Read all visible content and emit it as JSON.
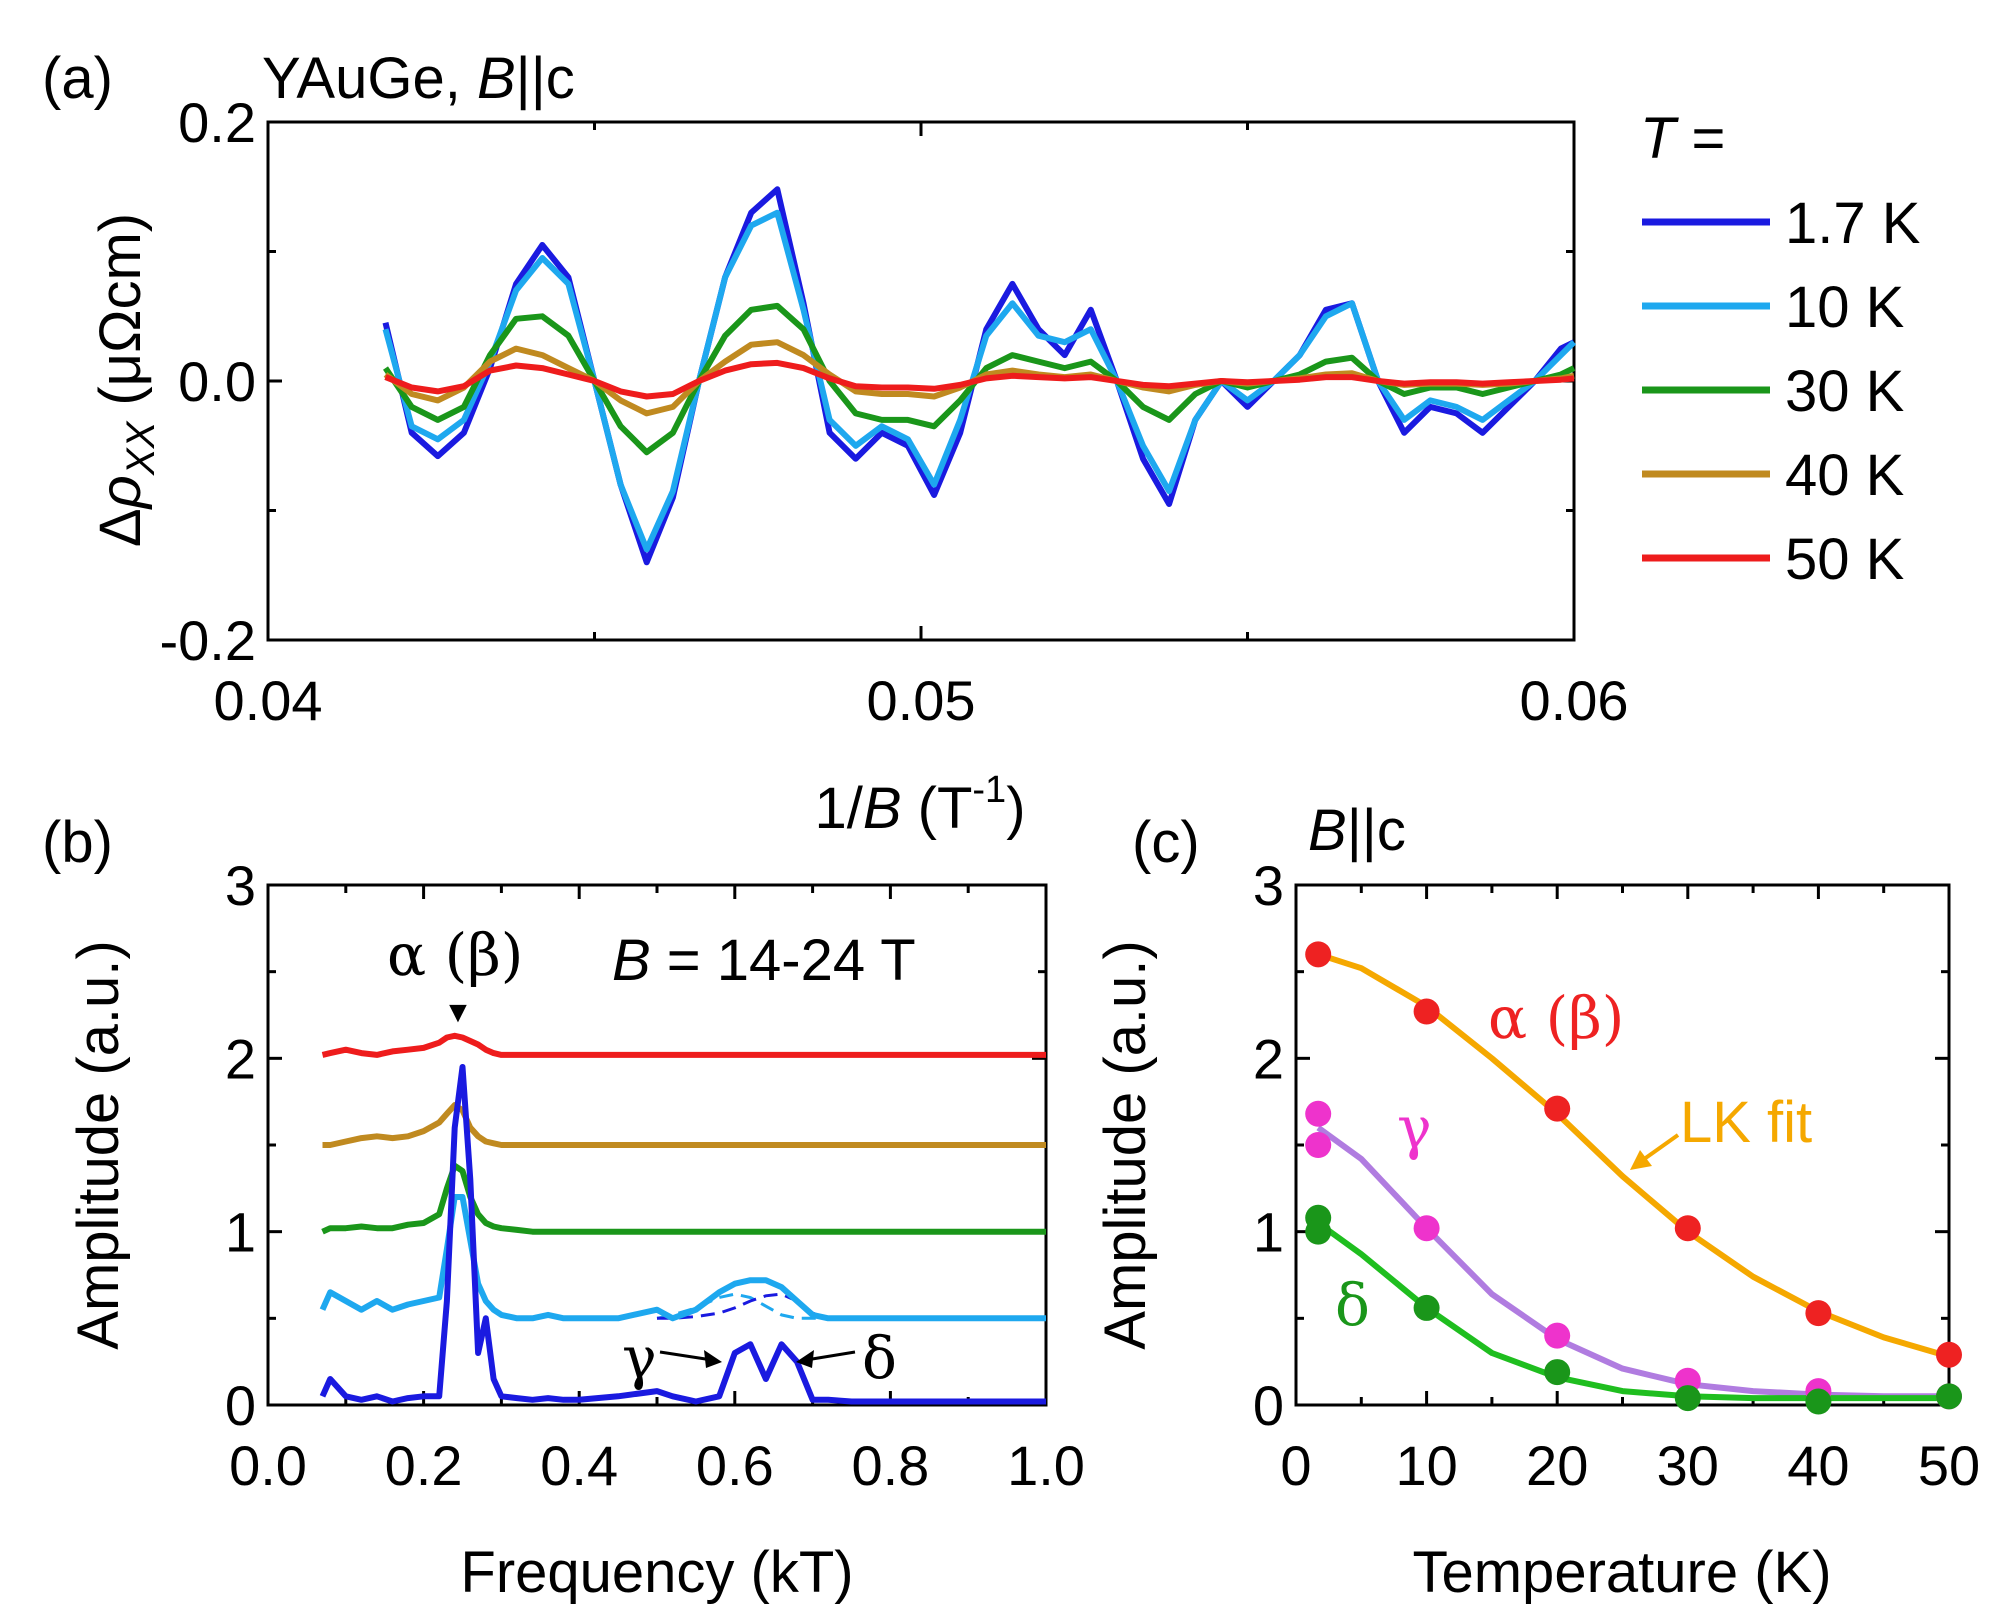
{
  "colors": {
    "1.7K": "#1a1ae0",
    "10K": "#1ea8ef",
    "30K": "#1a961a",
    "40K": "#c08a20",
    "50K": "#ee1c1c",
    "fit_ab": "#f5a800",
    "fit_g": "#b07ce0",
    "fit_d": "#1fbe1f",
    "pt_ab": "#ee2222",
    "pt_g": "#ee33cc",
    "pt_d": "#1a961a"
  },
  "chart_data": [
    {
      "id": "a",
      "type": "line",
      "panel_label": "(a)",
      "title": "YAuGe, B||c",
      "xlabel": "1/B (T-1)",
      "ylabel": "Δρxx (μΩcm)",
      "xlim": [
        0.04,
        0.06
      ],
      "ylim": [
        -0.2,
        0.2
      ],
      "xticks": [
        "0.04",
        "0.05",
        "0.06"
      ],
      "yticks": [
        "-0.2",
        "0.0",
        "0.2"
      ],
      "legend_title": "T =",
      "legend_position": "right",
      "legend": [
        "1.7 K",
        "10 K",
        "30 K",
        "40 K",
        "50 K"
      ],
      "x": [
        0.0418,
        0.0422,
        0.0426,
        0.043,
        0.0434,
        0.0438,
        0.0442,
        0.0446,
        0.045,
        0.0454,
        0.0458,
        0.0462,
        0.0466,
        0.047,
        0.0474,
        0.0478,
        0.0482,
        0.0486,
        0.049,
        0.0494,
        0.0498,
        0.0502,
        0.0506,
        0.051,
        0.0514,
        0.0518,
        0.0522,
        0.0526,
        0.053,
        0.0534,
        0.0538,
        0.0542,
        0.0546,
        0.055,
        0.0554,
        0.0558,
        0.0562,
        0.0566,
        0.057,
        0.0574,
        0.0578,
        0.0582,
        0.0586,
        0.059,
        0.0594,
        0.0598,
        0.06
      ],
      "series": [
        {
          "name": "1.7 K",
          "values": [
            0.045,
            -0.04,
            -0.058,
            -0.04,
            0.01,
            0.075,
            0.105,
            0.08,
            0.0,
            -0.08,
            -0.14,
            -0.09,
            0.0,
            0.08,
            0.13,
            0.148,
            0.06,
            -0.04,
            -0.06,
            -0.04,
            -0.05,
            -0.088,
            -0.04,
            0.04,
            0.075,
            0.04,
            0.02,
            0.055,
            0.0,
            -0.06,
            -0.095,
            -0.03,
            0.0,
            -0.02,
            0.0,
            0.02,
            0.055,
            0.06,
            0.0,
            -0.04,
            -0.02,
            -0.025,
            -0.04,
            -0.02,
            0.0,
            0.025,
            0.03
          ]
        },
        {
          "name": "10 K",
          "values": [
            0.04,
            -0.035,
            -0.045,
            -0.03,
            0.015,
            0.07,
            0.095,
            0.075,
            0.0,
            -0.08,
            -0.13,
            -0.085,
            0.0,
            0.08,
            0.12,
            0.13,
            0.055,
            -0.03,
            -0.05,
            -0.035,
            -0.045,
            -0.08,
            -0.03,
            0.035,
            0.06,
            0.035,
            0.03,
            0.04,
            0.0,
            -0.05,
            -0.085,
            -0.03,
            0.0,
            -0.015,
            0.0,
            0.02,
            0.05,
            0.06,
            0.0,
            -0.03,
            -0.015,
            -0.02,
            -0.03,
            -0.015,
            0.0,
            0.02,
            0.03
          ]
        },
        {
          "name": "30 K",
          "values": [
            0.01,
            -0.02,
            -0.03,
            -0.02,
            0.02,
            0.048,
            0.05,
            0.035,
            0.0,
            -0.035,
            -0.055,
            -0.04,
            0.0,
            0.035,
            0.055,
            0.058,
            0.04,
            0.0,
            -0.025,
            -0.03,
            -0.03,
            -0.035,
            -0.015,
            0.01,
            0.02,
            0.015,
            0.01,
            0.015,
            0.0,
            -0.02,
            -0.03,
            -0.01,
            0.0,
            -0.005,
            0.0,
            0.005,
            0.015,
            0.018,
            0.0,
            -0.01,
            -0.005,
            -0.005,
            -0.01,
            -0.005,
            0.0,
            0.005,
            0.01
          ]
        },
        {
          "name": "40 K",
          "values": [
            0.005,
            -0.01,
            -0.015,
            -0.005,
            0.015,
            0.025,
            0.02,
            0.01,
            0.0,
            -0.015,
            -0.025,
            -0.02,
            0.0,
            0.015,
            0.028,
            0.03,
            0.02,
            0.005,
            -0.008,
            -0.01,
            -0.01,
            -0.012,
            -0.005,
            0.005,
            0.008,
            0.005,
            0.003,
            0.005,
            0.0,
            -0.005,
            -0.008,
            -0.003,
            0.0,
            -0.002,
            0.0,
            0.002,
            0.005,
            0.006,
            0.0,
            -0.003,
            -0.002,
            -0.002,
            -0.003,
            -0.002,
            0.0,
            0.002,
            0.004
          ]
        },
        {
          "name": "50 K",
          "values": [
            0.003,
            -0.005,
            -0.008,
            -0.004,
            0.008,
            0.012,
            0.01,
            0.005,
            0.0,
            -0.008,
            -0.012,
            -0.01,
            0.0,
            0.008,
            0.013,
            0.014,
            0.01,
            0.002,
            -0.004,
            -0.005,
            -0.005,
            -0.006,
            -0.003,
            0.002,
            0.004,
            0.003,
            0.002,
            0.003,
            0.0,
            -0.003,
            -0.004,
            -0.002,
            0.0,
            -0.001,
            0.0,
            0.001,
            0.003,
            0.003,
            0.0,
            -0.002,
            -0.001,
            -0.001,
            -0.002,
            -0.001,
            0.0,
            0.001,
            0.002
          ]
        }
      ]
    },
    {
      "id": "b",
      "type": "line",
      "panel_label": "(b)",
      "xlabel": "Frequency (kT)",
      "ylabel": "Amplitude (a.u.)",
      "xlim": [
        0.0,
        1.0
      ],
      "ylim": [
        0,
        3
      ],
      "xticks": [
        "0.0",
        "0.2",
        "0.4",
        "0.6",
        "0.8",
        "1.0"
      ],
      "yticks": [
        "0",
        "1",
        "2",
        "3"
      ],
      "annotation_field": "B = 14-24 T",
      "annotations": [
        "α (β)",
        "γ",
        "δ"
      ],
      "note": "spectra offset vertically by 0, 0.5, 1, 1.5, 2 for 1.7, 10, 30, 40, 50 K",
      "x": [
        0.07,
        0.08,
        0.1,
        0.12,
        0.14,
        0.16,
        0.18,
        0.2,
        0.22,
        0.23,
        0.24,
        0.25,
        0.26,
        0.27,
        0.28,
        0.29,
        0.3,
        0.32,
        0.34,
        0.36,
        0.38,
        0.4,
        0.45,
        0.5,
        0.52,
        0.55,
        0.58,
        0.6,
        0.62,
        0.64,
        0.66,
        0.68,
        0.7,
        0.72,
        0.75,
        0.8,
        0.85,
        0.9,
        0.95,
        1.0
      ],
      "series": [
        {
          "name": "1.7 K",
          "offset": 0.0,
          "values": [
            0.05,
            0.15,
            0.05,
            0.03,
            0.05,
            0.02,
            0.04,
            0.05,
            0.05,
            0.6,
            1.6,
            1.95,
            1.3,
            0.3,
            0.5,
            0.15,
            0.05,
            0.04,
            0.03,
            0.04,
            0.03,
            0.03,
            0.05,
            0.08,
            0.05,
            0.02,
            0.05,
            0.3,
            0.35,
            0.15,
            0.35,
            0.25,
            0.03,
            0.03,
            0.02,
            0.02,
            0.02,
            0.02,
            0.02,
            0.02
          ]
        },
        {
          "name": "10 K",
          "offset": 0.5,
          "values": [
            0.55,
            0.65,
            0.6,
            0.55,
            0.6,
            0.55,
            0.58,
            0.6,
            0.62,
            0.9,
            1.2,
            1.2,
            0.95,
            0.7,
            0.6,
            0.55,
            0.52,
            0.5,
            0.5,
            0.52,
            0.5,
            0.5,
            0.5,
            0.55,
            0.5,
            0.55,
            0.65,
            0.7,
            0.72,
            0.72,
            0.68,
            0.6,
            0.52,
            0.5,
            0.5,
            0.5,
            0.5,
            0.5,
            0.5,
            0.5
          ]
        },
        {
          "name": "30 K",
          "offset": 1.0,
          "values": [
            1.0,
            1.02,
            1.02,
            1.03,
            1.02,
            1.02,
            1.04,
            1.05,
            1.1,
            1.25,
            1.38,
            1.35,
            1.2,
            1.1,
            1.05,
            1.03,
            1.02,
            1.01,
            1.0,
            1.0,
            1.0,
            1.0,
            1.0,
            1.0,
            1.0,
            1.0,
            1.0,
            1.0,
            1.0,
            1.0,
            1.0,
            1.0,
            1.0,
            1.0,
            1.0,
            1.0,
            1.0,
            1.0,
            1.0,
            1.0
          ]
        },
        {
          "name": "40 K",
          "offset": 1.5,
          "values": [
            1.5,
            1.5,
            1.52,
            1.54,
            1.55,
            1.54,
            1.55,
            1.58,
            1.63,
            1.68,
            1.73,
            1.7,
            1.6,
            1.55,
            1.52,
            1.51,
            1.5,
            1.5,
            1.5,
            1.5,
            1.5,
            1.5,
            1.5,
            1.5,
            1.5,
            1.5,
            1.5,
            1.5,
            1.5,
            1.5,
            1.5,
            1.5,
            1.5,
            1.5,
            1.5,
            1.5,
            1.5,
            1.5,
            1.5,
            1.5
          ]
        },
        {
          "name": "50 K",
          "offset": 2.0,
          "values": [
            2.02,
            2.03,
            2.05,
            2.03,
            2.02,
            2.04,
            2.05,
            2.06,
            2.09,
            2.12,
            2.13,
            2.12,
            2.1,
            2.08,
            2.05,
            2.03,
            2.02,
            2.02,
            2.02,
            2.02,
            2.02,
            2.02,
            2.02,
            2.02,
            2.02,
            2.02,
            2.02,
            2.02,
            2.02,
            2.02,
            2.02,
            2.02,
            2.02,
            2.02,
            2.02,
            2.02,
            2.02,
            2.02,
            2.02,
            2.02
          ]
        }
      ],
      "dashed_components": {
        "x": [
          0.5,
          0.52,
          0.55,
          0.58,
          0.6,
          0.62,
          0.64,
          0.66,
          0.68,
          0.7,
          0.72
        ],
        "gamma": [
          0.5,
          0.52,
          0.56,
          0.62,
          0.64,
          0.62,
          0.57,
          0.52,
          0.5,
          0.5,
          0.5
        ],
        "delta": [
          0.5,
          0.5,
          0.51,
          0.53,
          0.56,
          0.6,
          0.63,
          0.64,
          0.6,
          0.53,
          0.5
        ]
      }
    },
    {
      "id": "c",
      "type": "scatter",
      "panel_label": "(c)",
      "title": "B||c",
      "xlabel": "Temperature (K)",
      "ylabel": "Amplitude (a.u.)",
      "xlim": [
        0,
        50
      ],
      "ylim": [
        0,
        3
      ],
      "xticks": [
        "0",
        "10",
        "20",
        "30",
        "40",
        "50"
      ],
      "yticks": [
        "0",
        "1",
        "2",
        "3"
      ],
      "annotations": [
        "α (β)",
        "γ",
        "δ",
        "LK fit"
      ],
      "series": [
        {
          "name": "α (β)",
          "x": [
            1.7,
            10,
            20,
            30,
            40,
            50
          ],
          "values": [
            2.6,
            2.27,
            1.71,
            1.02,
            0.53,
            0.29
          ]
        },
        {
          "name": "γ",
          "x": [
            1.7,
            1.7,
            10,
            20,
            30,
            40,
            50
          ],
          "values": [
            1.68,
            1.5,
            1.02,
            0.4,
            0.14,
            0.08,
            0.05
          ]
        },
        {
          "name": "δ",
          "x": [
            1.7,
            1.7,
            10,
            20,
            30,
            40,
            50
          ],
          "values": [
            1.08,
            1.0,
            0.56,
            0.19,
            0.04,
            0.02,
            0.05
          ]
        }
      ],
      "fits": [
        {
          "name": "LK fit α (β)",
          "x": [
            1.7,
            5,
            10,
            15,
            20,
            25,
            30,
            35,
            40,
            45,
            50
          ],
          "values": [
            2.6,
            2.52,
            2.3,
            2.0,
            1.68,
            1.32,
            1.0,
            0.74,
            0.54,
            0.39,
            0.28
          ]
        },
        {
          "name": "LK fit γ",
          "x": [
            1.7,
            5,
            10,
            15,
            20,
            25,
            30,
            35,
            40,
            45,
            50
          ],
          "values": [
            1.6,
            1.42,
            1.02,
            0.64,
            0.38,
            0.21,
            0.12,
            0.08,
            0.06,
            0.05,
            0.05
          ]
        },
        {
          "name": "LK fit δ",
          "x": [
            1.7,
            5,
            10,
            15,
            20,
            25,
            30,
            35,
            40,
            45,
            50
          ],
          "values": [
            1.05,
            0.87,
            0.56,
            0.3,
            0.16,
            0.08,
            0.05,
            0.04,
            0.04,
            0.04,
            0.04
          ]
        }
      ]
    }
  ],
  "labels": {
    "a_panel": "(a)",
    "a_title_main": "YAuGe, ",
    "a_title_b": "B",
    "a_title_rest": "||c",
    "a_ylabel_delta": "Δ",
    "a_ylabel_rho": "ρ",
    "a_ylabel_sub": "XX",
    "a_ylabel_unit": " (μΩcm)",
    "a_xlabel_pre": "1/",
    "a_xlabel_b": "B",
    "a_xlabel_t": " (T",
    "a_xlabel_exp": "-1",
    "a_xlabel_close": ")",
    "legend_t": "T",
    "legend_eq": " =",
    "b_panel": "(b)",
    "b_peak": "α (β)",
    "b_field_b": "B",
    "b_field_rest": " = 14-24 T",
    "b_gamma": "γ",
    "b_delta": "δ",
    "b_arrow": "▼",
    "b_xlabel": "Frequency (kT)",
    "b_ylabel": "Amplitude (a.u.)",
    "c_panel": "(c)",
    "c_title_b": "B",
    "c_title_rest": "||c",
    "c_ab": "α (β)",
    "c_gamma": "γ",
    "c_delta": "δ",
    "c_fit": "LK fit",
    "c_xlabel": "Temperature (K)",
    "c_ylabel": "Amplitude (a.u.)"
  }
}
